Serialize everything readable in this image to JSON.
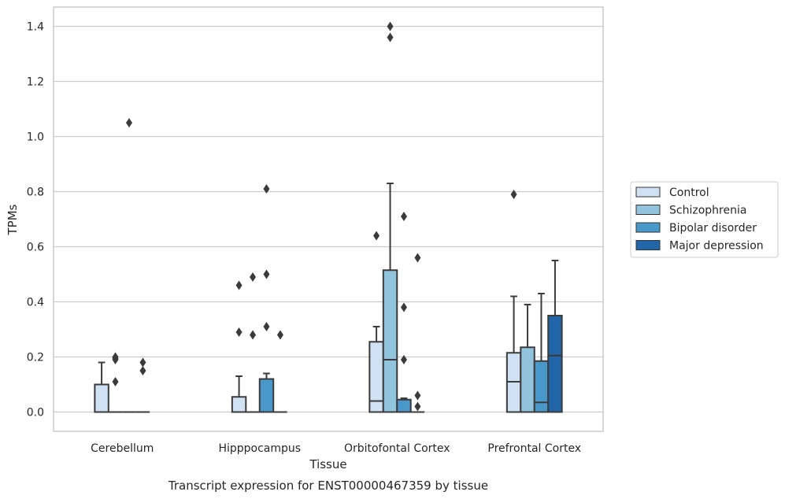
{
  "chart_data": {
    "type": "boxplot",
    "xlabel": "Tissue",
    "ylabel": "TPMs",
    "caption": "Transcript expression for ENST00000467359 by tissue",
    "ylim": [
      -0.07,
      1.47
    ],
    "yticks": [
      "0.0",
      "0.2",
      "0.4",
      "0.6",
      "0.8",
      "1.0",
      "1.2",
      "1.4"
    ],
    "grid": "horizontal",
    "legend_position": "right",
    "categories": [
      "Cerebellum",
      "Hipppocampus",
      "Orbitofontal Cortex",
      "Prefrontal Cortex"
    ],
    "series": [
      {
        "name": "Control",
        "color": "#cfe1f2",
        "boxes": [
          {
            "q1": 0.0,
            "median": 0.0,
            "q3": 0.1,
            "whisker_low": 0.0,
            "whisker_high": 0.18,
            "outliers": []
          },
          {
            "q1": 0.0,
            "median": 0.0,
            "q3": 0.055,
            "whisker_low": 0.0,
            "whisker_high": 0.13,
            "outliers": [
              0.29,
              0.46
            ]
          },
          {
            "q1": 0.0,
            "median": 0.04,
            "q3": 0.255,
            "whisker_low": 0.0,
            "whisker_high": 0.31,
            "outliers": [
              0.64
            ]
          },
          {
            "q1": 0.0,
            "median": 0.11,
            "q3": 0.215,
            "whisker_low": 0.0,
            "whisker_high": 0.42,
            "outliers": [
              0.79
            ]
          }
        ]
      },
      {
        "name": "Schizophrenia",
        "color": "#93c4de",
        "boxes": [
          {
            "q1": 0.0,
            "median": 0.0,
            "q3": 0.0,
            "whisker_low": 0.0,
            "whisker_high": 0.0,
            "outliers": [
              0.11,
              0.19,
              0.195,
              0.2
            ]
          },
          {
            "q1": 0.0,
            "median": 0.0,
            "q3": 0.0,
            "whisker_low": 0.0,
            "whisker_high": 0.0,
            "outliers": [
              0.28,
              0.49
            ]
          },
          {
            "q1": 0.0,
            "median": 0.19,
            "q3": 0.515,
            "whisker_low": 0.0,
            "whisker_high": 0.83,
            "outliers": [
              1.36,
              1.4
            ]
          },
          {
            "q1": 0.0,
            "median": 0.0,
            "q3": 0.235,
            "whisker_low": 0.0,
            "whisker_high": 0.39,
            "outliers": []
          }
        ]
      },
      {
        "name": "Bipolar disorder",
        "color": "#4a98c9",
        "boxes": [
          {
            "q1": 0.0,
            "median": 0.0,
            "q3": 0.0,
            "whisker_low": 0.0,
            "whisker_high": 0.0,
            "outliers": [
              1.05
            ]
          },
          {
            "q1": 0.0,
            "median": 0.0,
            "q3": 0.12,
            "whisker_low": 0.0,
            "whisker_high": 0.14,
            "outliers": [
              0.31,
              0.5,
              0.81
            ]
          },
          {
            "q1": 0.0,
            "median": 0.0,
            "q3": 0.045,
            "whisker_low": 0.0,
            "whisker_high": 0.05,
            "outliers": [
              0.19,
              0.38,
              0.71
            ]
          },
          {
            "q1": 0.0,
            "median": 0.035,
            "q3": 0.185,
            "whisker_low": 0.0,
            "whisker_high": 0.43,
            "outliers": []
          }
        ]
      },
      {
        "name": "Major depression",
        "color": "#2265a8",
        "boxes": [
          {
            "q1": 0.0,
            "median": 0.0,
            "q3": 0.0,
            "whisker_low": 0.0,
            "whisker_high": 0.0,
            "outliers": [
              0.15,
              0.18
            ]
          },
          {
            "q1": 0.0,
            "median": 0.0,
            "q3": 0.0,
            "whisker_low": 0.0,
            "whisker_high": 0.0,
            "outliers": [
              0.28
            ]
          },
          {
            "q1": 0.0,
            "median": 0.0,
            "q3": 0.0,
            "whisker_low": 0.0,
            "whisker_high": 0.0,
            "outliers": [
              0.02,
              0.06,
              0.56
            ]
          },
          {
            "q1": 0.0,
            "median": 0.205,
            "q3": 0.35,
            "whisker_low": 0.0,
            "whisker_high": 0.55,
            "outliers": []
          }
        ]
      }
    ]
  }
}
